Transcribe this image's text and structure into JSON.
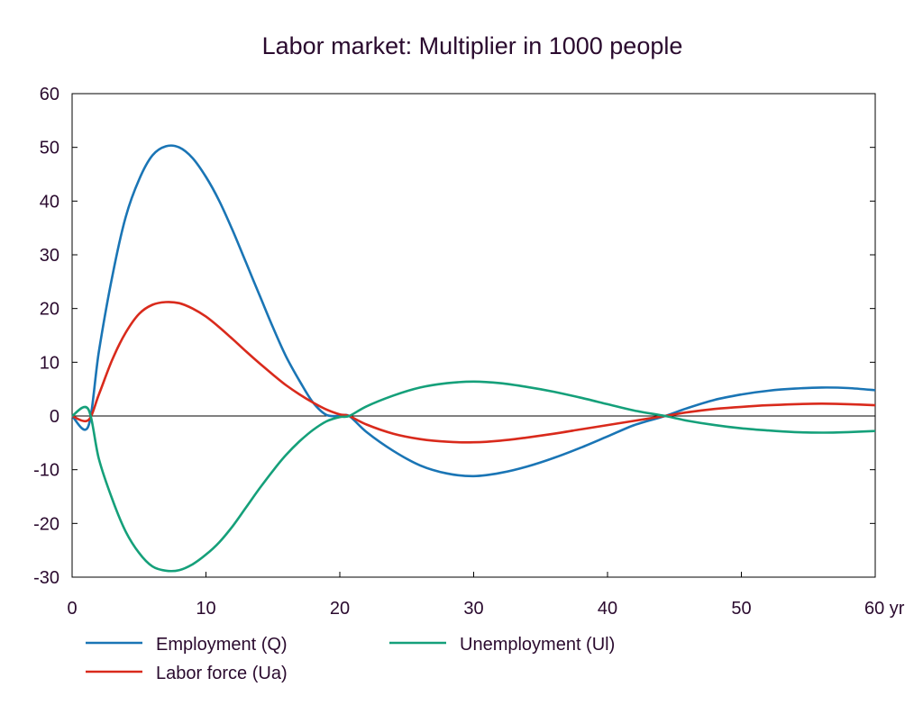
{
  "chart_data": {
    "type": "line",
    "title": "Labor market: Multiplier in 1000 people",
    "xlabel": "",
    "ylabel": "",
    "xlim": [
      0,
      60
    ],
    "ylim": [
      -30,
      60
    ],
    "x_ticks": [
      0,
      10,
      20,
      30,
      40,
      50,
      60
    ],
    "x_tick_labels": [
      "0",
      "10",
      "20",
      "30",
      "40",
      "50",
      "60 yr"
    ],
    "y_ticks": [
      -30,
      -20,
      -10,
      0,
      10,
      20,
      30,
      40,
      50,
      60
    ],
    "y_tick_labels": [
      "-30",
      "-20",
      "-10",
      "0",
      "10",
      "20",
      "30",
      "40",
      "50",
      "60"
    ],
    "grid": false,
    "zero_line": true,
    "legend_position": "bottom",
    "series": [
      {
        "name": "Employment (Q)",
        "color": "#1a75b5",
        "x": [
          0,
          1.2,
          2,
          3,
          4,
          5,
          6,
          7,
          8,
          9,
          10,
          11,
          12,
          13,
          14,
          15,
          16,
          17,
          18,
          19,
          20,
          20.7,
          22,
          24,
          26,
          28,
          30,
          32,
          34,
          36,
          38,
          40,
          42,
          44.3,
          46,
          48,
          50,
          52,
          54,
          56,
          58,
          60
        ],
        "y": [
          0,
          -2,
          12,
          26,
          37,
          44,
          48.5,
          50.2,
          50,
          48,
          44.5,
          40,
          34.5,
          28.5,
          22.5,
          16.5,
          11,
          6.5,
          2.5,
          0.2,
          0,
          0,
          -3,
          -6.5,
          -9.2,
          -10.7,
          -11.2,
          -10.6,
          -9.4,
          -7.8,
          -5.9,
          -3.8,
          -1.7,
          0,
          1.5,
          3,
          4,
          4.7,
          5.1,
          5.3,
          5.2,
          4.8
        ]
      },
      {
        "name": "Labor force (Ua)",
        "color": "#d92a1c",
        "x": [
          0,
          1.2,
          2,
          3,
          4,
          5,
          6,
          7,
          8,
          9,
          10,
          11,
          12,
          13,
          14,
          15,
          16,
          17,
          18,
          19,
          20,
          20.7,
          22,
          24,
          26,
          28,
          30,
          32,
          34,
          36,
          38,
          40,
          42,
          44.3,
          46,
          48,
          50,
          52,
          54,
          56,
          58,
          60
        ],
        "y": [
          0,
          -0.8,
          4,
          10.5,
          15.5,
          19,
          20.7,
          21.2,
          21,
          20,
          18.5,
          16.5,
          14.3,
          12,
          9.8,
          7.7,
          5.7,
          4,
          2.5,
          1.2,
          0.3,
          0,
          -1.6,
          -3.3,
          -4.3,
          -4.8,
          -4.9,
          -4.6,
          -4,
          -3.3,
          -2.5,
          -1.7,
          -0.9,
          0,
          0.7,
          1.3,
          1.7,
          2,
          2.2,
          2.3,
          2.2,
          2
        ]
      },
      {
        "name": "Unemployment (Ul)",
        "color": "#15a07a",
        "x": [
          0,
          1.2,
          2,
          3,
          4,
          5,
          6,
          7,
          8,
          9,
          10,
          11,
          12,
          13,
          14,
          15,
          16,
          17,
          18,
          19,
          20,
          20.7,
          22,
          24,
          26,
          28,
          30,
          32,
          34,
          36,
          38,
          40,
          42,
          44.3,
          46,
          48,
          50,
          52,
          54,
          56,
          58,
          60
        ],
        "y": [
          0,
          1.3,
          -8,
          -15.5,
          -21.5,
          -25.5,
          -28,
          -28.8,
          -28.7,
          -27.6,
          -25.8,
          -23.5,
          -20.5,
          -17,
          -13.5,
          -10.2,
          -7.2,
          -4.7,
          -2.6,
          -1,
          -0.2,
          0,
          1.8,
          3.8,
          5.3,
          6.1,
          6.4,
          6.1,
          5.4,
          4.5,
          3.4,
          2.2,
          1,
          0,
          -0.9,
          -1.7,
          -2.3,
          -2.7,
          -3,
          -3.1,
          -3,
          -2.8
        ]
      }
    ],
    "legend": [
      {
        "name": "Employment (Q)",
        "color": "#1a75b5"
      },
      {
        "name": "Unemployment (Ul)",
        "color": "#15a07a"
      },
      {
        "name": "Labor force (Ua)",
        "color": "#d92a1c"
      }
    ]
  }
}
